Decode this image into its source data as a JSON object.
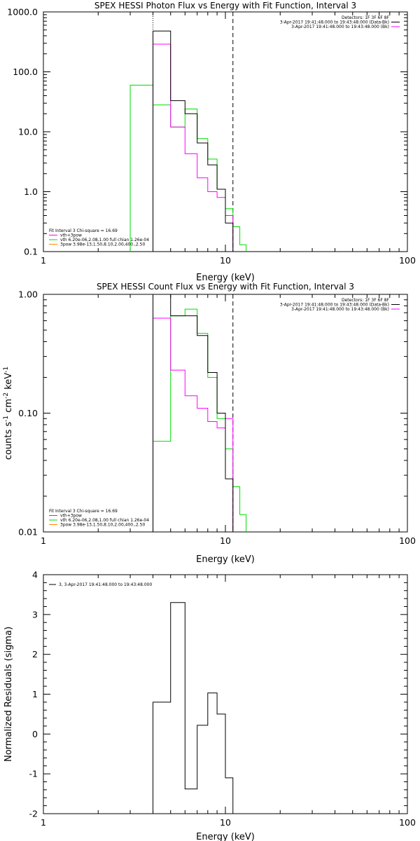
{
  "colors": {
    "data": "#000000",
    "model": "#ff00ff",
    "component_green": "#00dd00",
    "component_orange": "#ff8800",
    "background": "#ffffff"
  },
  "chart_data": [
    {
      "type": "line",
      "title": "SPEX HESSI Photon Flux vs Energy with Fit Function, Interval 3",
      "xlabel": "Energy (keV)",
      "ylabel": "",
      "x_scale": "log",
      "y_scale": "log",
      "xlim": [
        1,
        100
      ],
      "ylim": [
        0.1,
        1000
      ],
      "x_ticks": [
        "1",
        "10",
        "100"
      ],
      "y_ticks": [
        "0.1",
        "1.0",
        "10.0",
        "100.0",
        "1000.0"
      ],
      "legend_top": [
        "Detectors: 1F 3F 6F 8F",
        "3-Apr-2017 19:41:48.000 to 19:43:48.000 (Data-Bk)",
        "3-Apr-2017 19:41:48.000 to 19:43:48.000 (Bk)"
      ],
      "legend_bottom": [
        "Fit Interval 3   Chi-square = 16.69",
        "vth+3pow",
        "vth 6.20e-06,2.08,1.00  full chian 1.26e-04",
        "3pow 3.98e-13,1.50,8.10,2.00,400.,2.50"
      ],
      "vlines": [
        4.0,
        11.0
      ],
      "series": [
        {
          "name": "Data-Bk",
          "edges": [
            4,
            5,
            6,
            7,
            8,
            9,
            10,
            11
          ],
          "values": [
            480,
            33,
            20,
            6.5,
            2.8,
            1.1,
            0.3
          ]
        },
        {
          "name": "Bk",
          "edges": [
            4,
            5,
            6,
            7,
            8,
            9,
            10,
            11
          ],
          "values": [
            290,
            12,
            4.3,
            1.7,
            1.0,
            0.8,
            0.4
          ]
        },
        {
          "name": "vth 6.20e-06,2.08,1.00  full chian 1.26e-04",
          "edges": [
            3,
            4,
            5,
            6,
            7,
            8,
            9,
            10,
            11,
            12,
            13
          ],
          "values": [
            60,
            28,
            12,
            24,
            7.7,
            3.5,
            1.1,
            0.52,
            0.26,
            0.13
          ]
        }
      ]
    },
    {
      "type": "line",
      "title": "SPEX HESSI Count Flux vs Energy with Fit Function, Interval 3",
      "xlabel": "Energy (keV)",
      "ylabel": "counts s⁻¹ cm⁻² keV⁻¹",
      "x_scale": "log",
      "y_scale": "log",
      "xlim": [
        1,
        100
      ],
      "ylim": [
        0.01,
        1.0
      ],
      "x_ticks": [
        "1",
        "10",
        "100"
      ],
      "y_ticks": [
        "0.01",
        "0.10",
        "1.00"
      ],
      "legend_top": [
        "Detectors: 1F 3F 6F 8F",
        "3-Apr-2017 19:41:48.000 to 19:43:48.000 (Data-Bk)",
        "3-Apr-2017 19:41:48.000 to 19:43:48.000 (Bk)"
      ],
      "legend_bottom": [
        "Fit Interval 3   Chi-square = 16.69",
        "vth+3pow",
        "vth 6.20e-06,2.08,1.00  full chian 1.26e-04",
        "3pow 3.98e-13,1.50,8.10,2.00,400.,2.50"
      ],
      "vlines": [
        4.0,
        11.0
      ],
      "series": [
        {
          "name": "Data-Bk",
          "edges": [
            4,
            5,
            6,
            7,
            8,
            9,
            10,
            11
          ],
          "values": [
            1.02,
            0.66,
            0.66,
            0.45,
            0.22,
            0.1,
            0.028
          ]
        },
        {
          "name": "Bk",
          "edges": [
            4,
            5,
            6,
            7,
            8,
            9,
            10,
            11
          ],
          "values": [
            0.63,
            0.23,
            0.14,
            0.11,
            0.085,
            0.075,
            0.09
          ]
        },
        {
          "name": "vth 6.20e-06,2.08,1.00  full chian 1.26e-04",
          "edges": [
            4,
            5,
            6,
            7,
            8,
            9,
            10,
            11,
            12,
            13
          ],
          "values": [
            0.058,
            0.66,
            0.75,
            0.47,
            0.2,
            0.09,
            0.05,
            0.024,
            0.014
          ]
        }
      ]
    },
    {
      "type": "line",
      "title": "",
      "xlabel": "Energy (keV)",
      "ylabel": "Normalized Residuals (sigma)",
      "x_scale": "log",
      "y_scale": "linear",
      "xlim": [
        1,
        100
      ],
      "ylim": [
        -2,
        4
      ],
      "x_ticks": [
        "1",
        "10",
        "100"
      ],
      "y_ticks": [
        "-2",
        "-1",
        "0",
        "1",
        "2",
        "3",
        "4"
      ],
      "legend_top": [
        "3,  3-Apr-2017 19:41:48.000 to 19:43:48.000"
      ],
      "series": [
        {
          "name": "3,  3-Apr-2017 19:41:48.000 to 19:43:48.000",
          "edges": [
            4,
            5,
            6,
            7,
            8,
            9,
            10,
            11
          ],
          "values": [
            0.8,
            3.3,
            -1.38,
            0.22,
            1.03,
            0.5,
            -1.1
          ]
        }
      ]
    }
  ]
}
